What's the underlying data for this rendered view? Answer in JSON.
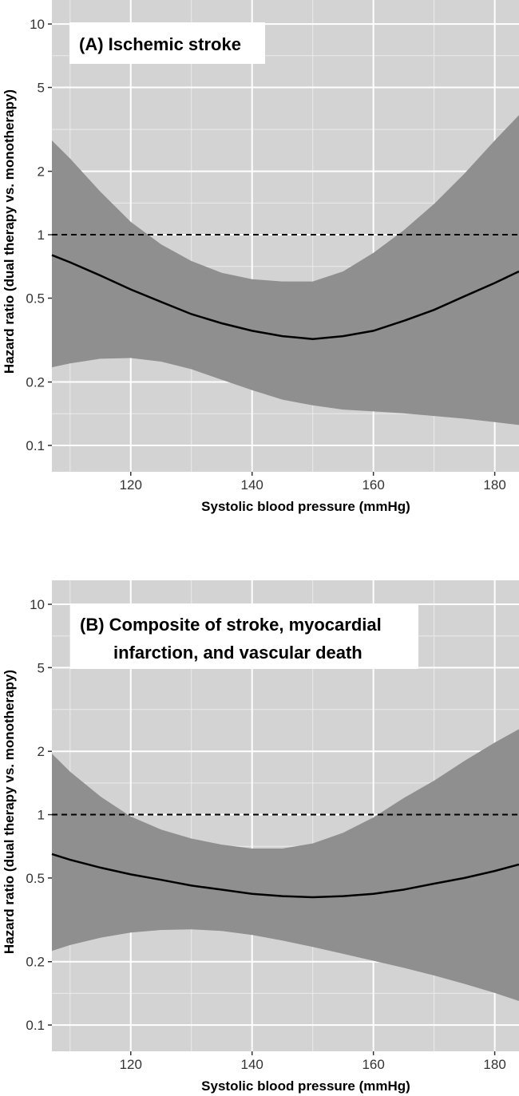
{
  "chart_data": [
    {
      "type": "line",
      "title": "(A) Ischemic stroke",
      "xlabel": "Systolic blood pressure (mmHg)",
      "ylabel": "Hazard ratio (dual therapy vs. monotherapy)",
      "xlim": [
        107,
        184
      ],
      "ylim": [
        0.075,
        13
      ],
      "y_scale": "log",
      "x_ticks": [
        120,
        140,
        160,
        180
      ],
      "y_ticks": [
        0.1,
        0.2,
        0.5,
        1,
        2,
        5,
        10
      ],
      "y_tick_labels": [
        "0.1",
        "0.2",
        "0.5",
        "1",
        "2",
        "5",
        "10"
      ],
      "reference_line": 1,
      "grid": true,
      "colors": {
        "panel_bg": "#d3d3d3",
        "ribbon": "#8f8f8f",
        "line": "#000000",
        "grid": "#ffffff"
      },
      "x": [
        107,
        110,
        115,
        120,
        125,
        130,
        135,
        140,
        145,
        150,
        155,
        160,
        165,
        170,
        175,
        180,
        184
      ],
      "y": [
        0.8,
        0.74,
        0.64,
        0.55,
        0.48,
        0.42,
        0.38,
        0.35,
        0.33,
        0.32,
        0.33,
        0.35,
        0.39,
        0.44,
        0.51,
        0.59,
        0.67
      ],
      "lower": [
        0.235,
        0.245,
        0.258,
        0.26,
        0.25,
        0.23,
        0.205,
        0.183,
        0.165,
        0.155,
        0.148,
        0.145,
        0.142,
        0.138,
        0.134,
        0.129,
        0.125
      ],
      "upper": [
        2.8,
        2.3,
        1.6,
        1.15,
        0.9,
        0.75,
        0.66,
        0.615,
        0.6,
        0.6,
        0.67,
        0.82,
        1.05,
        1.4,
        1.95,
        2.8,
        3.7
      ]
    },
    {
      "type": "line",
      "title": [
        "(B) Composite of stroke, myocardial",
        "infarction, and vascular death"
      ],
      "xlabel": "Systolic blood pressure (mmHg)",
      "ylabel": "Hazard ratio (dual therapy vs. monotherapy)",
      "xlim": [
        107,
        184
      ],
      "ylim": [
        0.075,
        13
      ],
      "y_scale": "log",
      "x_ticks": [
        120,
        140,
        160,
        180
      ],
      "y_ticks": [
        0.1,
        0.2,
        0.5,
        1,
        2,
        5,
        10
      ],
      "y_tick_labels": [
        "0.1",
        "0.2",
        "0.5",
        "1",
        "2",
        "5",
        "10"
      ],
      "reference_line": 1,
      "grid": true,
      "colors": {
        "panel_bg": "#d3d3d3",
        "ribbon": "#8f8f8f",
        "line": "#000000",
        "grid": "#ffffff"
      },
      "x": [
        107,
        110,
        115,
        120,
        125,
        130,
        135,
        140,
        145,
        150,
        155,
        160,
        165,
        170,
        175,
        180,
        184
      ],
      "y": [
        0.65,
        0.61,
        0.56,
        0.52,
        0.49,
        0.46,
        0.44,
        0.42,
        0.41,
        0.405,
        0.41,
        0.42,
        0.44,
        0.47,
        0.5,
        0.54,
        0.58
      ],
      "lower": [
        0.225,
        0.24,
        0.26,
        0.275,
        0.283,
        0.285,
        0.28,
        0.268,
        0.252,
        0.235,
        0.218,
        0.202,
        0.187,
        0.172,
        0.157,
        0.142,
        0.13
      ],
      "upper": [
        1.95,
        1.6,
        1.22,
        0.98,
        0.85,
        0.77,
        0.72,
        0.69,
        0.69,
        0.73,
        0.82,
        0.97,
        1.2,
        1.45,
        1.8,
        2.2,
        2.55
      ]
    }
  ]
}
